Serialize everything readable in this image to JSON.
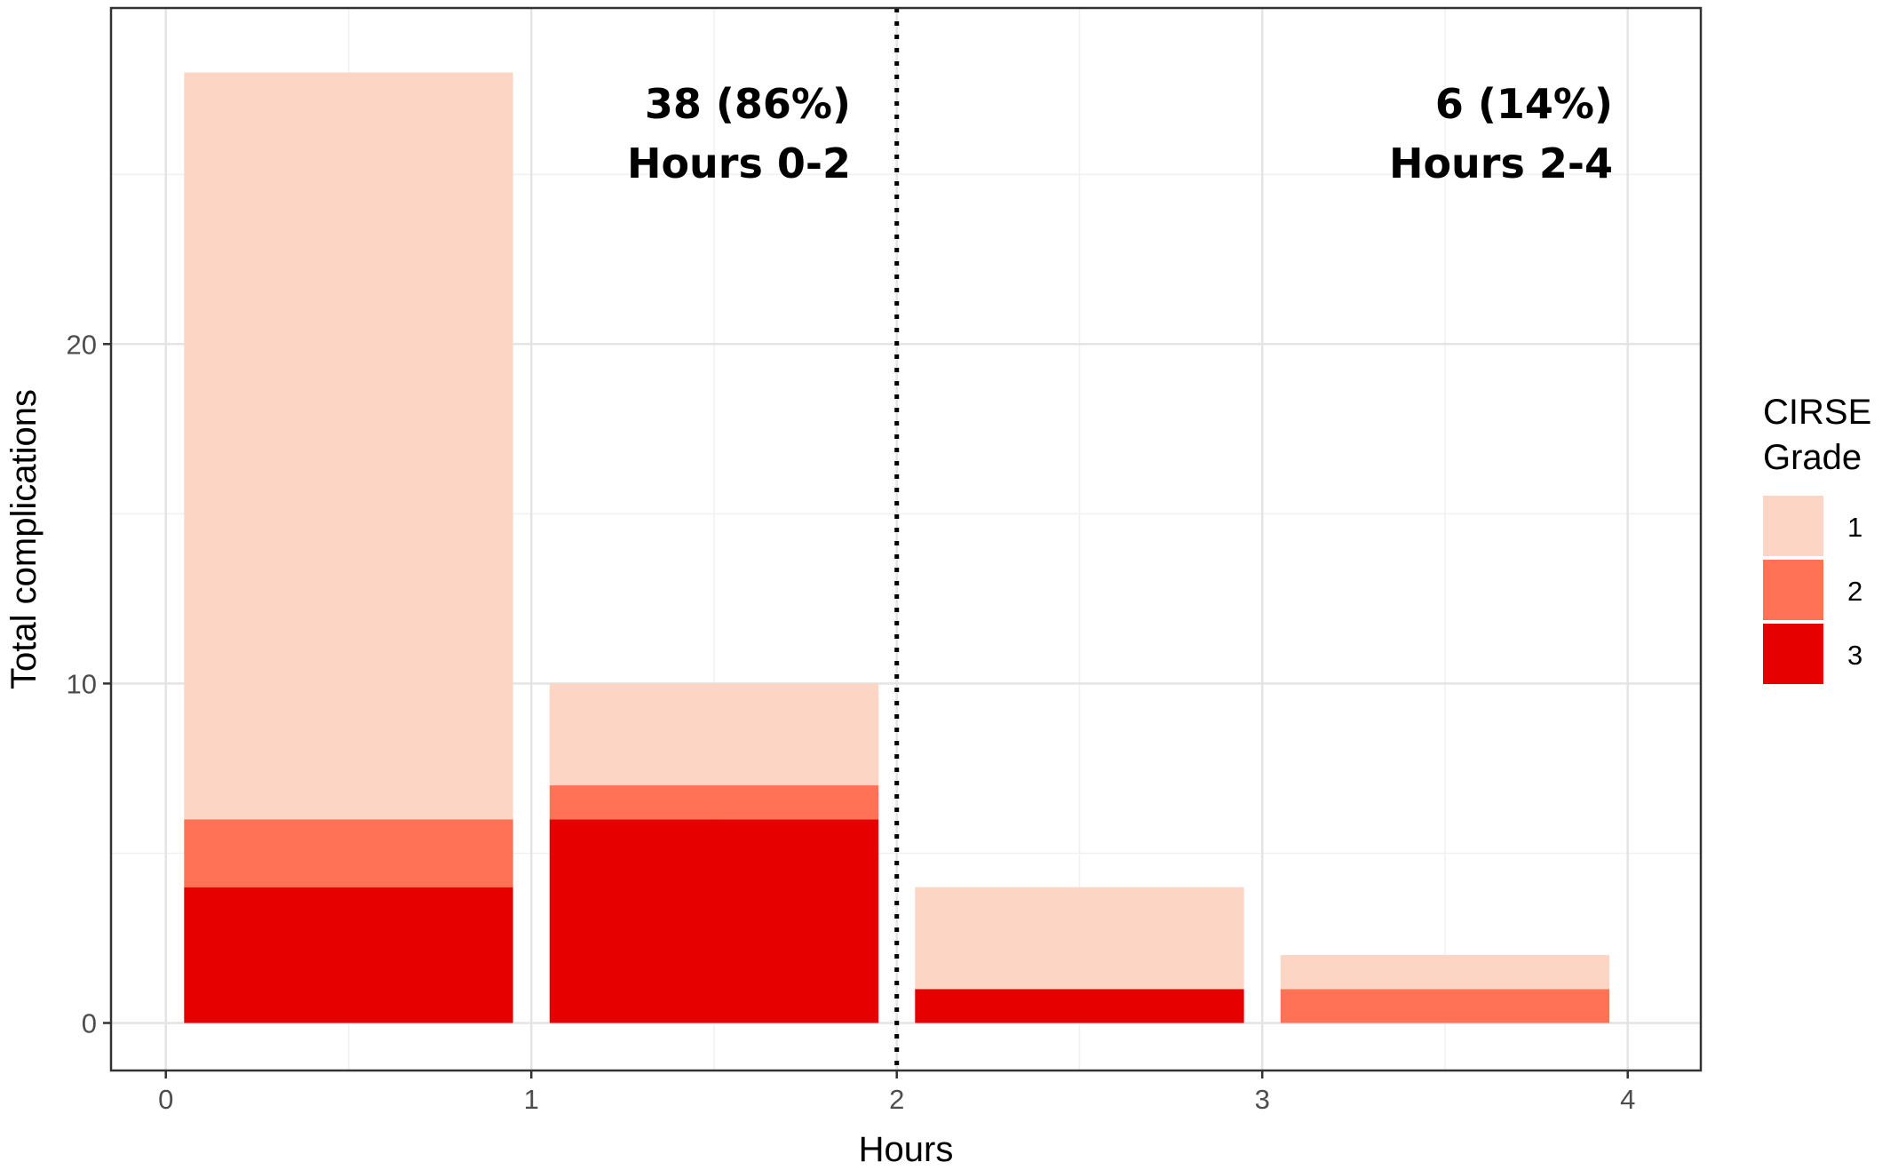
{
  "chart_data": {
    "type": "bar",
    "stacked": true,
    "x_bins": [
      {
        "start": 0,
        "end": 1
      },
      {
        "start": 1,
        "end": 2
      },
      {
        "start": 2,
        "end": 3
      },
      {
        "start": 3,
        "end": 4
      }
    ],
    "series": [
      {
        "name": "3",
        "color": "#E60000",
        "values": [
          4,
          6,
          1,
          0
        ]
      },
      {
        "name": "2",
        "color": "#FF7256",
        "values": [
          2,
          1,
          0,
          1
        ]
      },
      {
        "name": "1",
        "color": "#FCD5C4",
        "values": [
          22,
          3,
          3,
          1
        ]
      }
    ],
    "xlabel": "Hours",
    "ylabel": "Total complications",
    "xlim": [
      -0.15,
      4.2
    ],
    "ylim": [
      -1.4,
      29.9
    ],
    "x_ticks": [
      "0",
      "1",
      "2",
      "3",
      "4"
    ],
    "y_ticks": [
      "0",
      "10",
      "20"
    ],
    "grid": true,
    "vline": {
      "x": 2,
      "style": "dotted"
    },
    "annotations": [
      {
        "line1": "38 (86%)",
        "line2": "Hours 0-2"
      },
      {
        "line1": "6 (14%)",
        "line2": "Hours 2-4"
      }
    ],
    "legend": {
      "title_line1": "CIRSE",
      "title_line2": "Grade",
      "position": "right",
      "items": [
        {
          "label": "1",
          "color": "#FCD5C4"
        },
        {
          "label": "2",
          "color": "#FF7256"
        },
        {
          "label": "3",
          "color": "#E60000"
        }
      ]
    }
  }
}
